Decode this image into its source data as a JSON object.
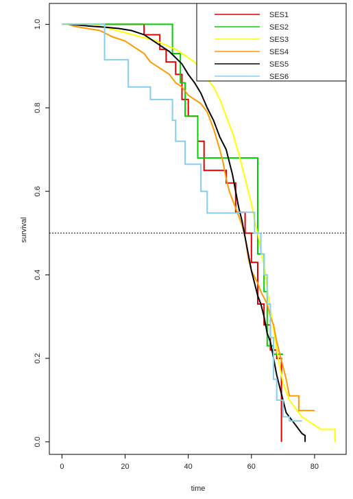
{
  "chart_data": {
    "type": "line",
    "step": true,
    "xlabel": "time",
    "ylabel": "survival",
    "xlim": [
      -4,
      90
    ],
    "ylim": [
      -0.03,
      1.05
    ],
    "xticks": [
      0,
      20,
      40,
      60,
      80
    ],
    "yticks": [
      0.0,
      0.2,
      0.4,
      0.6,
      0.8,
      1.0
    ],
    "xtick_labels": [
      "0",
      "20",
      "40",
      "60",
      "80"
    ],
    "ytick_labels": [
      "0.0",
      "0.2",
      "0.4",
      "0.6",
      "0.8",
      "1.0"
    ],
    "reference_line": {
      "y": 0.5,
      "style": "dotted",
      "color": "#000000"
    },
    "legend_position": "top-right",
    "series": [
      {
        "name": "SES1",
        "color": "#e00000",
        "points": [
          [
            0,
            1.0
          ],
          [
            26,
            1.0
          ],
          [
            26,
            0.975
          ],
          [
            31,
            0.975
          ],
          [
            31,
            0.94
          ],
          [
            33,
            0.94
          ],
          [
            33,
            0.91
          ],
          [
            36,
            0.91
          ],
          [
            36,
            0.88
          ],
          [
            38,
            0.88
          ],
          [
            38,
            0.82
          ],
          [
            40,
            0.82
          ],
          [
            40,
            0.78
          ],
          [
            43,
            0.78
          ],
          [
            43,
            0.72
          ],
          [
            45,
            0.72
          ],
          [
            45,
            0.65
          ],
          [
            52,
            0.65
          ],
          [
            52,
            0.62
          ],
          [
            55,
            0.62
          ],
          [
            55,
            0.55
          ],
          [
            58,
            0.55
          ],
          [
            58,
            0.5
          ],
          [
            60,
            0.5
          ],
          [
            60,
            0.43
          ],
          [
            62,
            0.43
          ],
          [
            62,
            0.33
          ],
          [
            64,
            0.33
          ],
          [
            64,
            0.28
          ],
          [
            66,
            0.28
          ],
          [
            66,
            0.22
          ],
          [
            68,
            0.22
          ],
          [
            68,
            0.2
          ],
          [
            69.5,
            0.2
          ],
          [
            69.5,
            0.0
          ]
        ]
      },
      {
        "name": "SES2",
        "color": "#00d000",
        "points": [
          [
            0,
            1.0
          ],
          [
            35,
            1.0
          ],
          [
            35,
            0.93
          ],
          [
            37.5,
            0.93
          ],
          [
            37.5,
            0.86
          ],
          [
            39,
            0.86
          ],
          [
            39,
            0.78
          ],
          [
            43,
            0.78
          ],
          [
            43,
            0.68
          ],
          [
            62,
            0.68
          ],
          [
            62,
            0.45
          ],
          [
            64,
            0.45
          ],
          [
            64,
            0.36
          ],
          [
            65,
            0.36
          ],
          [
            65,
            0.23
          ],
          [
            67,
            0.23
          ],
          [
            67,
            0.21
          ],
          [
            70,
            0.21
          ]
        ]
      },
      {
        "name": "SES3",
        "color": "#ffff00",
        "points": [
          [
            0,
            1.0
          ],
          [
            10,
            1.0
          ],
          [
            15,
            0.99
          ],
          [
            20,
            0.98
          ],
          [
            25,
            0.97
          ],
          [
            30,
            0.96
          ],
          [
            33,
            0.95
          ],
          [
            36,
            0.94
          ],
          [
            38,
            0.93
          ],
          [
            40,
            0.92
          ],
          [
            42,
            0.91
          ],
          [
            44,
            0.89
          ],
          [
            46,
            0.87
          ],
          [
            48,
            0.85
          ],
          [
            50,
            0.82
          ],
          [
            52,
            0.78
          ],
          [
            54,
            0.74
          ],
          [
            56,
            0.69
          ],
          [
            58,
            0.63
          ],
          [
            60,
            0.57
          ],
          [
            61,
            0.53
          ],
          [
            62,
            0.5
          ],
          [
            63,
            0.46
          ],
          [
            64,
            0.42
          ],
          [
            65,
            0.37
          ],
          [
            66,
            0.32
          ],
          [
            67,
            0.27
          ],
          [
            68,
            0.22
          ],
          [
            69,
            0.18
          ],
          [
            70,
            0.14
          ],
          [
            72,
            0.1
          ],
          [
            74,
            0.08
          ],
          [
            76,
            0.06
          ],
          [
            78,
            0.05
          ],
          [
            80,
            0.04
          ],
          [
            82,
            0.03
          ],
          [
            86.5,
            0.03
          ],
          [
            86.5,
            0.0
          ]
        ]
      },
      {
        "name": "SES4",
        "color": "#ff9900",
        "points": [
          [
            2,
            1.0
          ],
          [
            4,
            0.995
          ],
          [
            8,
            0.99
          ],
          [
            12,
            0.985
          ],
          [
            16,
            0.97
          ],
          [
            20,
            0.96
          ],
          [
            24,
            0.94
          ],
          [
            26,
            0.93
          ],
          [
            28,
            0.91
          ],
          [
            30,
            0.9
          ],
          [
            32,
            0.89
          ],
          [
            34,
            0.88
          ],
          [
            36,
            0.86
          ],
          [
            38,
            0.85
          ],
          [
            40,
            0.83
          ],
          [
            42,
            0.82
          ],
          [
            44,
            0.81
          ],
          [
            46,
            0.79
          ],
          [
            47,
            0.77
          ],
          [
            48,
            0.75
          ],
          [
            50,
            0.7
          ],
          [
            51,
            0.67
          ],
          [
            52,
            0.63
          ],
          [
            53,
            0.6
          ],
          [
            55,
            0.56
          ],
          [
            57,
            0.52
          ],
          [
            58,
            0.49
          ],
          [
            59,
            0.44
          ],
          [
            60,
            0.41
          ],
          [
            62,
            0.38
          ],
          [
            63,
            0.36
          ],
          [
            65,
            0.33
          ],
          [
            66,
            0.3
          ],
          [
            67,
            0.28
          ],
          [
            68,
            0.24
          ],
          [
            70,
            0.18
          ],
          [
            71,
            0.15
          ],
          [
            72,
            0.11
          ],
          [
            75,
            0.11
          ],
          [
            75,
            0.075
          ],
          [
            80,
            0.075
          ]
        ]
      },
      {
        "name": "SES5",
        "color": "#000000",
        "points": [
          [
            2,
            1.0
          ],
          [
            10,
            0.995
          ],
          [
            14,
            0.993
          ],
          [
            18,
            0.99
          ],
          [
            22,
            0.985
          ],
          [
            26,
            0.975
          ],
          [
            28,
            0.965
          ],
          [
            30,
            0.955
          ],
          [
            32,
            0.945
          ],
          [
            34,
            0.935
          ],
          [
            36,
            0.92
          ],
          [
            38,
            0.905
          ],
          [
            40,
            0.88
          ],
          [
            42,
            0.86
          ],
          [
            44,
            0.835
          ],
          [
            46,
            0.8
          ],
          [
            48,
            0.77
          ],
          [
            50,
            0.73
          ],
          [
            52,
            0.7
          ],
          [
            53,
            0.67
          ],
          [
            54,
            0.64
          ],
          [
            55,
            0.6
          ],
          [
            56,
            0.56
          ],
          [
            57,
            0.53
          ],
          [
            58,
            0.49
          ],
          [
            59,
            0.45
          ],
          [
            60,
            0.41
          ],
          [
            61,
            0.38
          ],
          [
            62,
            0.35
          ],
          [
            63,
            0.33
          ],
          [
            64,
            0.3
          ],
          [
            65,
            0.26
          ],
          [
            66,
            0.24
          ],
          [
            67,
            0.2
          ],
          [
            68,
            0.16
          ],
          [
            69,
            0.13
          ],
          [
            70,
            0.1
          ],
          [
            71,
            0.07
          ],
          [
            72,
            0.06
          ],
          [
            73,
            0.05
          ],
          [
            74,
            0.04
          ],
          [
            75,
            0.03
          ],
          [
            76,
            0.02
          ],
          [
            77,
            0.015
          ],
          [
            77,
            0.0
          ]
        ]
      },
      {
        "name": "SES6",
        "color": "#87ceeb",
        "points": [
          [
            0,
            1.0
          ],
          [
            13.5,
            1.0
          ],
          [
            13.5,
            0.915
          ],
          [
            21,
            0.915
          ],
          [
            21,
            0.85
          ],
          [
            28,
            0.85
          ],
          [
            28,
            0.82
          ],
          [
            35,
            0.82
          ],
          [
            35,
            0.77
          ],
          [
            36,
            0.77
          ],
          [
            36,
            0.72
          ],
          [
            39,
            0.72
          ],
          [
            39,
            0.665
          ],
          [
            44,
            0.665
          ],
          [
            44,
            0.6
          ],
          [
            46,
            0.6
          ],
          [
            46,
            0.548
          ],
          [
            56,
            0.548
          ],
          [
            56,
            0.55
          ],
          [
            61,
            0.55
          ],
          [
            61,
            0.5
          ],
          [
            63,
            0.5
          ],
          [
            63,
            0.45
          ],
          [
            64,
            0.45
          ],
          [
            64,
            0.4
          ],
          [
            65,
            0.4
          ],
          [
            65,
            0.33
          ],
          [
            66,
            0.33
          ],
          [
            66,
            0.25
          ],
          [
            67,
            0.25
          ],
          [
            67,
            0.15
          ],
          [
            68,
            0.15
          ],
          [
            68,
            0.1
          ],
          [
            70,
            0.1
          ],
          [
            70,
            0.06
          ],
          [
            72,
            0.06
          ],
          [
            72,
            0.05
          ],
          [
            76,
            0.05
          ]
        ]
      }
    ]
  }
}
